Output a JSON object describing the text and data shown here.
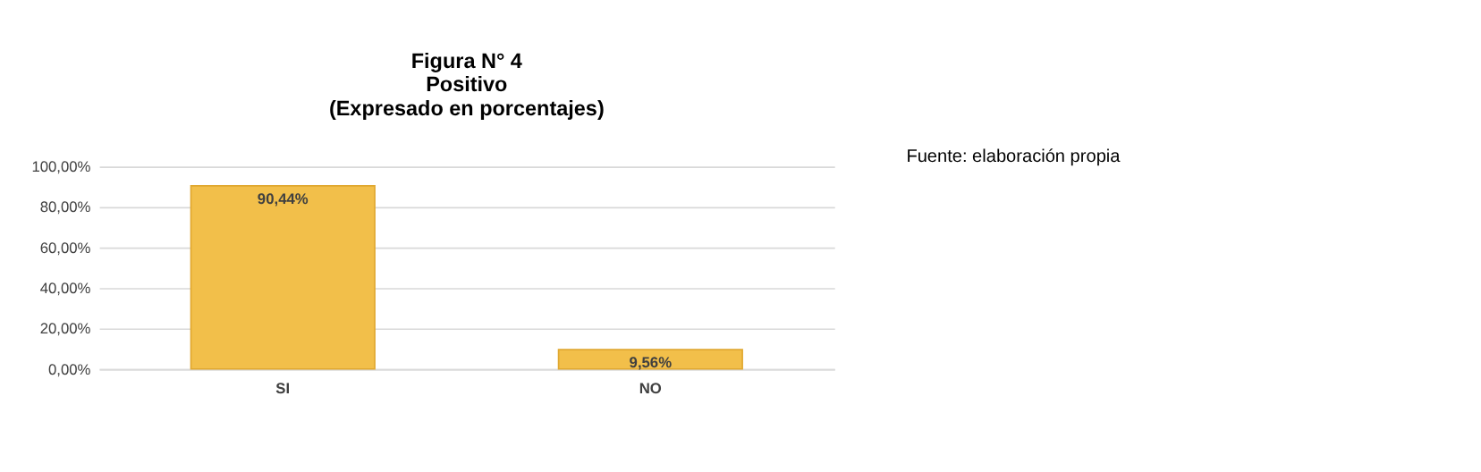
{
  "chart_data": {
    "type": "bar",
    "title": "Figura N° 4",
    "subtitle": "Positivo\n(Expresado en porcentajes)",
    "categories": [
      "SI",
      "NO"
    ],
    "values": [
      90.44,
      9.56
    ],
    "color": "#f2bf4a",
    "value_labels": [
      "90,44%",
      "9,56%"
    ],
    "ylim": [
      0,
      100
    ],
    "yticks": [
      {
        "value": 0,
        "label": "0,00%"
      },
      {
        "value": 20,
        "label": "20,00%"
      },
      {
        "value": 40,
        "label": "40,00%"
      },
      {
        "value": 60,
        "label": "60,00%"
      },
      {
        "value": 80,
        "label": "80,00%"
      },
      {
        "value": 100,
        "label": "100,00%"
      }
    ],
    "grid": "y",
    "annotations": [
      "Fuente: elaboración propia"
    ]
  }
}
